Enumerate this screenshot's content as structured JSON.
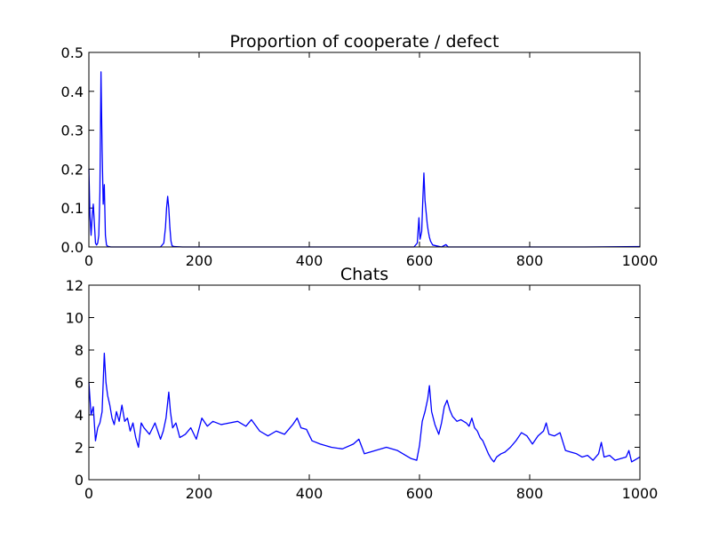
{
  "chart_data": [
    {
      "type": "line",
      "title": "Proportion of cooperate / defect",
      "xlabel": "",
      "ylabel": "",
      "xlim": [
        0,
        1000
      ],
      "ylim": [
        0,
        0.5
      ],
      "xticks": [
        0,
        200,
        400,
        600,
        800,
        1000
      ],
      "xtick_labels": [
        "0",
        "200",
        "400",
        "600",
        "800",
        "1000"
      ],
      "yticks": [
        0,
        0.1,
        0.2,
        0.3,
        0.4,
        0.5
      ],
      "ytick_labels": [
        "0.0",
        "0.1",
        "0.2",
        "0.3",
        "0.4",
        "0.5"
      ],
      "grid": false,
      "color": "#0000ff",
      "series": [
        {
          "x": [
            0,
            2,
            4,
            6,
            8,
            10,
            12,
            14,
            16,
            18,
            20,
            22,
            24,
            26,
            28,
            30,
            32,
            34,
            36,
            40,
            60,
            100,
            130,
            136,
            139,
            141,
            143,
            145,
            147,
            149,
            151,
            155,
            170,
            300,
            500,
            590,
            596,
            599,
            601,
            604,
            606,
            608,
            610,
            612,
            614,
            616,
            618,
            620,
            624,
            640,
            648,
            652,
            700,
            800,
            900,
            1000
          ],
          "y": [
            0.2,
            0.08,
            0.03,
            0.08,
            0.11,
            0.06,
            0.01,
            0.005,
            0.01,
            0.03,
            0.14,
            0.45,
            0.25,
            0.11,
            0.16,
            0.03,
            0.005,
            0.002,
            0.001,
            0.0,
            0.0,
            0.0,
            0.0,
            0.01,
            0.05,
            0.1,
            0.13,
            0.1,
            0.05,
            0.015,
            0.003,
            0.001,
            0.0,
            0.0,
            0.0,
            0.0,
            0.01,
            0.075,
            0.02,
            0.04,
            0.12,
            0.19,
            0.12,
            0.09,
            0.06,
            0.04,
            0.025,
            0.015,
            0.005,
            0.0,
            0.006,
            0.0,
            0.0,
            0.0,
            0.0,
            0.001
          ]
        }
      ]
    },
    {
      "type": "line",
      "title": "Chats",
      "xlabel": "",
      "ylabel": "",
      "xlim": [
        0,
        1000
      ],
      "ylim": [
        0,
        12
      ],
      "xticks": [
        0,
        200,
        400,
        600,
        800,
        1000
      ],
      "xtick_labels": [
        "0",
        "200",
        "400",
        "600",
        "800",
        "1000"
      ],
      "yticks": [
        0,
        2,
        4,
        6,
        8,
        10,
        12
      ],
      "ytick_labels": [
        "0",
        "2",
        "4",
        "6",
        "8",
        "10",
        "12"
      ],
      "grid": false,
      "color": "#0000ff",
      "series": [
        {
          "x": [
            0,
            4,
            8,
            12,
            16,
            20,
            24,
            28,
            31,
            34,
            38,
            42,
            46,
            50,
            55,
            60,
            65,
            70,
            75,
            80,
            85,
            90,
            95,
            100,
            110,
            120,
            130,
            135,
            140,
            145,
            148,
            152,
            158,
            165,
            175,
            185,
            195,
            205,
            215,
            225,
            240,
            255,
            270,
            285,
            295,
            310,
            325,
            340,
            355,
            370,
            378,
            385,
            395,
            405,
            420,
            440,
            460,
            480,
            490,
            500,
            520,
            540,
            560,
            575,
            585,
            595,
            600,
            605,
            610,
            615,
            618,
            622,
            628,
            635,
            640,
            645,
            650,
            655,
            660,
            668,
            675,
            685,
            690,
            695,
            700,
            705,
            710,
            715,
            720,
            725,
            730,
            735,
            740,
            748,
            755,
            765,
            775,
            785,
            795,
            805,
            815,
            825,
            830,
            835,
            845,
            855,
            865,
            875,
            885,
            895,
            905,
            915,
            925,
            930,
            935,
            945,
            955,
            965,
            975,
            980,
            985,
            995,
            1000
          ],
          "y": [
            6.0,
            4.0,
            4.5,
            2.4,
            3.2,
            3.5,
            4.2,
            7.8,
            6.0,
            5.2,
            4.6,
            3.8,
            3.4,
            4.2,
            3.6,
            4.6,
            3.6,
            3.8,
            3.0,
            3.5,
            2.6,
            2.0,
            3.5,
            3.2,
            2.8,
            3.5,
            2.5,
            3.0,
            3.8,
            5.4,
            4.2,
            3.2,
            3.5,
            2.6,
            2.8,
            3.2,
            2.5,
            3.8,
            3.3,
            3.6,
            3.4,
            3.5,
            3.6,
            3.3,
            3.7,
            3.0,
            2.7,
            3.0,
            2.8,
            3.4,
            3.8,
            3.2,
            3.1,
            2.4,
            2.2,
            2.0,
            1.9,
            2.2,
            2.5,
            1.6,
            1.8,
            2.0,
            1.8,
            1.5,
            1.3,
            1.2,
            2.1,
            3.6,
            4.2,
            5.0,
            5.8,
            4.2,
            3.4,
            2.8,
            3.5,
            4.5,
            4.9,
            4.3,
            3.9,
            3.6,
            3.7,
            3.5,
            3.3,
            3.8,
            3.2,
            3.0,
            2.6,
            2.4,
            2.0,
            1.6,
            1.3,
            1.1,
            1.4,
            1.6,
            1.7,
            2.0,
            2.4,
            2.9,
            2.7,
            2.2,
            2.7,
            3.0,
            3.5,
            2.8,
            2.7,
            2.9,
            1.8,
            1.7,
            1.6,
            1.4,
            1.5,
            1.2,
            1.6,
            2.3,
            1.4,
            1.5,
            1.2,
            1.3,
            1.4,
            1.8,
            1.1,
            1.3,
            1.4
          ]
        }
      ]
    }
  ]
}
